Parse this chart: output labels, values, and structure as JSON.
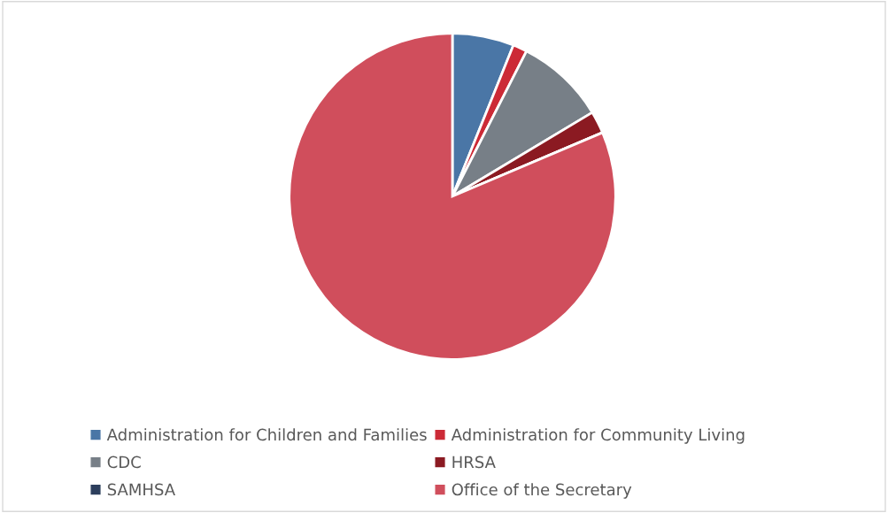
{
  "chart_data": {
    "type": "pie",
    "categories": [
      "Administration for Children and Families",
      "Administration for Community Living",
      "CDC",
      "HRSA",
      "SAMHSA",
      "Office of the Secretary"
    ],
    "values": [
      6.1,
      1.4,
      8.9,
      2.2,
      0,
      81.4
    ],
    "colors": [
      "#4a76a6",
      "#cc2a36",
      "#777f87",
      "#8b1a22",
      "#2c3e5c",
      "#d04e5c"
    ],
    "legend": "bottom"
  }
}
